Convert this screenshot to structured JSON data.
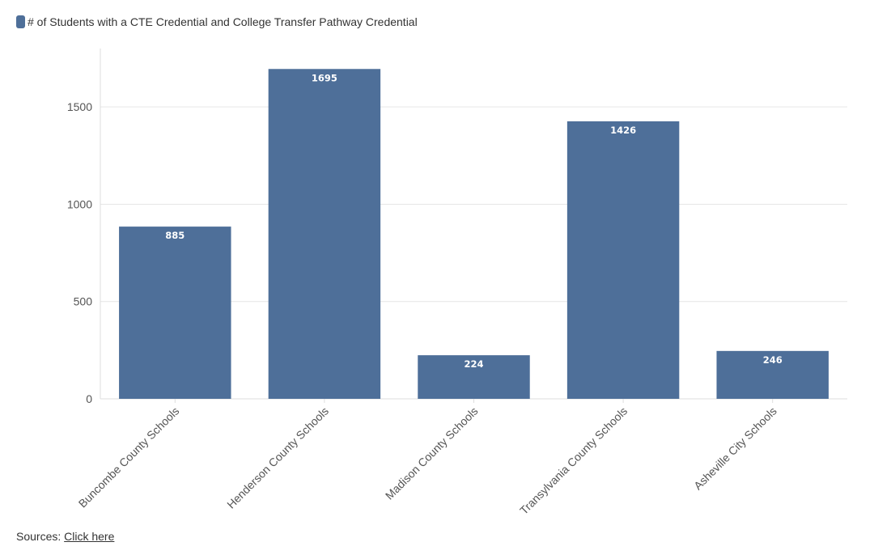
{
  "legend": {
    "label": "# of Students with a CTE Credential and College Transfer Pathway Credential",
    "color": "#4e6f99"
  },
  "chart_data": {
    "type": "bar",
    "categories": [
      "Buncombe County Schools",
      "Henderson County Schools",
      "Madison County Schools",
      "Transylvania County Schools",
      "Asheville City Schools"
    ],
    "series": [
      {
        "name": "# of Students with a CTE Credential and College Transfer Pathway Credential",
        "values": [
          885,
          1695,
          224,
          1426,
          246
        ]
      }
    ],
    "y_ticks": [
      0,
      500,
      1000,
      1500
    ],
    "ylim": [
      0,
      1800
    ],
    "grid": true,
    "legend_position": "top-left",
    "data_labels": true
  },
  "footer": {
    "prefix": "Sources:",
    "link_text": "Click here"
  }
}
